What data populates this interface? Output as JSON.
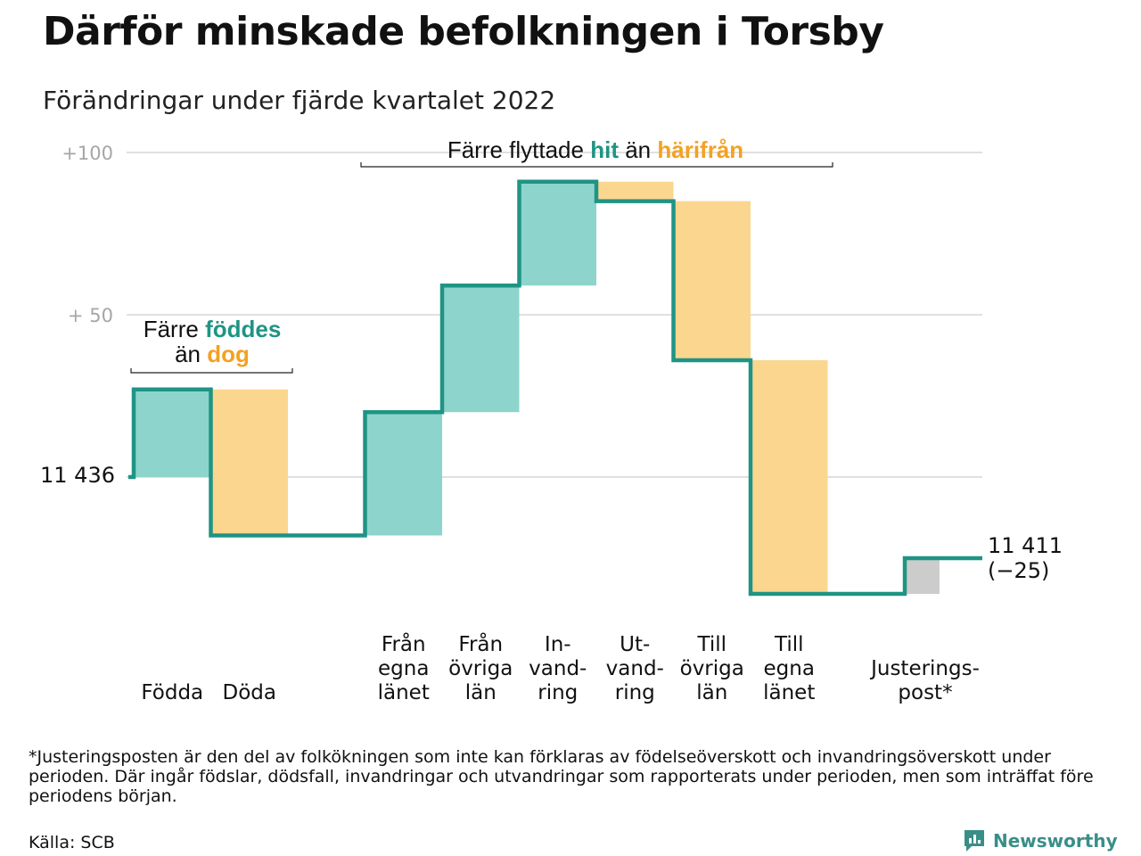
{
  "header": {
    "title": "Därför minskade befolkningen i Torsby",
    "subtitle": "Förändringar under fjärde kvartalet 2022"
  },
  "chart_data": {
    "type": "waterfall",
    "start_value": 11436,
    "start_label": "11 436",
    "end_value": 11411,
    "end_label_line1": "11 411",
    "end_label_line2": "(−25)",
    "y_ticks": [
      {
        "value": 100,
        "label": "+100"
      },
      {
        "value": 50,
        "label": "+ 50"
      },
      {
        "value": 0,
        "label": ""
      }
    ],
    "ylim": [
      -37,
      100
    ],
    "grid": true,
    "colors": {
      "increase": "#8dd5cc",
      "decrease": "#fbd68e",
      "adjustment": "#cccccc",
      "line": "#1f9484",
      "accent_in": "#1f9484",
      "accent_out": "#f4a122"
    },
    "steps": [
      {
        "label_lines": [
          "Födda"
        ],
        "value": 27,
        "kind": "increase"
      },
      {
        "label_lines": [
          "Döda"
        ],
        "value": -45,
        "kind": "decrease"
      },
      {
        "label_lines": [
          "Från",
          "egna",
          "länet"
        ],
        "value": 38,
        "kind": "increase"
      },
      {
        "label_lines": [
          "Från",
          "övriga",
          "län"
        ],
        "value": 39,
        "kind": "increase"
      },
      {
        "label_lines": [
          "In-",
          "vand-",
          "ring"
        ],
        "value": 32,
        "kind": "increase"
      },
      {
        "label_lines": [
          "Ut-",
          "vand-",
          "ring"
        ],
        "value": -6,
        "kind": "decrease"
      },
      {
        "label_lines": [
          "Till",
          "övriga",
          "län"
        ],
        "value": -49,
        "kind": "decrease"
      },
      {
        "label_lines": [
          "Till",
          "egna",
          "länet"
        ],
        "value": -72,
        "kind": "decrease"
      },
      {
        "label_lines": [
          "Justerings-",
          "post*"
        ],
        "value": 11,
        "kind": "adjustment"
      }
    ],
    "annotations": {
      "births": {
        "line1": "Färre",
        "line1_highlight": "föddes",
        "line2": "än",
        "line2_highlight": "dog"
      },
      "migration": {
        "prefix": "Färre flyttade",
        "highlight_in": "hit",
        "middle": "än",
        "highlight_out": "härifrån"
      }
    }
  },
  "footnote": "*Justeringsposten är den del av folkökningen som inte kan förklaras av födelseöverskott och invandringsöverskott under perioden. Där ingår födslar, dödsfall, invandringar och utvandringar som rapporterats under perioden, men som inträffat före periodens början.",
  "source": "Källa: SCB",
  "brand": {
    "name": "Newsworthy",
    "icon": "newsworthy-logo-icon"
  }
}
